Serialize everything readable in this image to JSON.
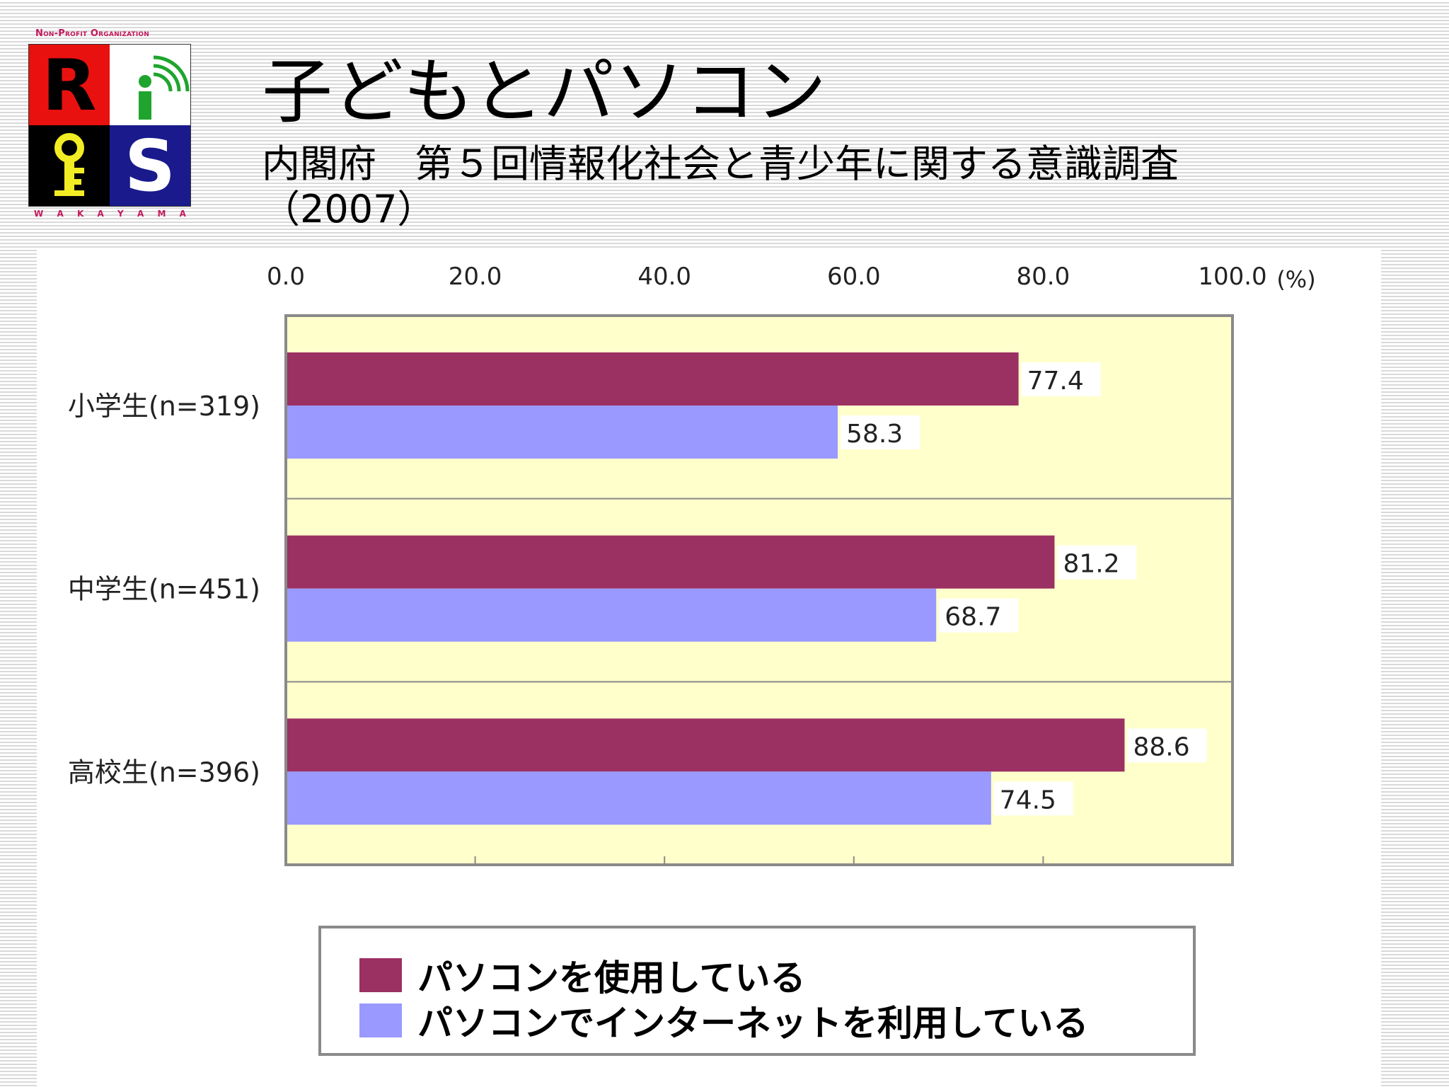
{
  "logo": {
    "org_text": "Non-Profit Organization",
    "letter_r": "R",
    "letter_s": "S",
    "location": [
      "W",
      "A",
      "K",
      "A",
      "Y",
      "A",
      "M",
      "A"
    ]
  },
  "header": {
    "title": "子どもとパソコン",
    "subtitle": "内閣府　第５回情報化社会と青少年に関する意識調査（2007）"
  },
  "colors": {
    "series_pc": "#9b3063",
    "series_net": "#9999ff",
    "plot_bg": "#ffffcc",
    "logo_red": "#e8110f",
    "logo_blue": "#1a1a8c",
    "logo_green": "#1fa52e",
    "logo_yellow": "#f2ec25"
  },
  "chart_data": {
    "type": "bar",
    "orientation": "horizontal",
    "categories": [
      "小学生(n=319)",
      "中学生(n=451)",
      "高校生(n=396)"
    ],
    "series": [
      {
        "name": "パソコンを使用している",
        "values": [
          77.4,
          81.2,
          88.6
        ]
      },
      {
        "name": "パソコンでインターネットを利用している",
        "values": [
          58.3,
          68.7,
          74.5
        ]
      }
    ],
    "value_labels": [
      [
        "77.4",
        "81.2",
        "88.6"
      ],
      [
        "58.3",
        "68.7",
        "74.5"
      ]
    ],
    "xlim": [
      0,
      100
    ],
    "xticks": [
      0,
      20,
      40,
      60,
      80,
      100
    ],
    "xtick_labels": [
      "0.0",
      "20.0",
      "40.0",
      "60.0",
      "80.0",
      "100.0"
    ],
    "unit_label": "(%)",
    "x_axis_position": "top",
    "legend_position": "bottom",
    "grid": false
  }
}
